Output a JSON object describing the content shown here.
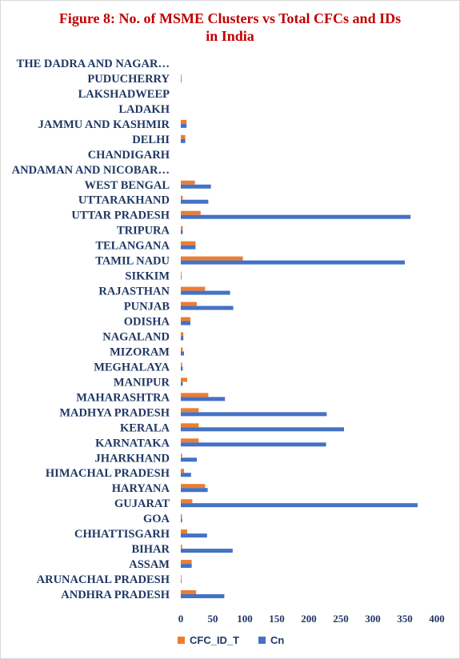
{
  "chart_data": {
    "type": "bar",
    "orientation": "horizontal",
    "title": "Figure 8: No. of MSME Clusters vs Total CFCs and IDs",
    "title_line2": "in India",
    "categories": [
      "ANDHRA PRADESH",
      "ARUNACHAL PRADESH",
      "ASSAM",
      "BIHAR",
      "CHHATTISGARH",
      "GOA",
      "GUJARAT",
      "HARYANA",
      "HIMACHAL PRADESH",
      "JHARKHAND",
      "KARNATAKA",
      "KERALA",
      "MADHYA PRADESH",
      "MAHARASHTRA",
      "MANIPUR",
      "MEGHALAYA",
      "MIZORAM",
      "NAGALAND",
      "ODISHA",
      "PUNJAB",
      "RAJASTHAN",
      "SIKKIM",
      "TAMIL NADU",
      "TELANGANA",
      "TRIPURA",
      "UTTAR PRADESH",
      "UTTARAKHAND",
      "WEST BENGAL",
      "ANDAMAN AND NICOBAR…",
      "CHANDIGARH",
      "DELHI",
      "JAMMU AND KASHMIR",
      "LADAKH",
      "LAKSHADWEEP",
      "PUDUCHERRY",
      "THE DADRA AND NAGAR…"
    ],
    "series": [
      {
        "name": "CFC_ID_T",
        "color": "#ed7d31",
        "values": [
          24,
          1,
          17,
          2,
          10,
          2,
          18,
          38,
          5,
          2,
          28,
          28,
          28,
          43,
          10,
          2,
          3,
          4,
          15,
          25,
          38,
          1,
          97,
          23,
          3,
          31,
          3,
          22,
          0,
          0,
          7,
          9,
          0,
          0,
          1,
          0
        ]
      },
      {
        "name": "Cn",
        "color": "#4472c4",
        "values": [
          68,
          1,
          17,
          81,
          41,
          2,
          370,
          42,
          16,
          25,
          227,
          255,
          228,
          69,
          3,
          3,
          5,
          4,
          15,
          82,
          77,
          1,
          350,
          23,
          3,
          359,
          43,
          47,
          0,
          0,
          7,
          9,
          0,
          0,
          1,
          0
        ]
      }
    ],
    "xlim": [
      0,
      400
    ],
    "xticks": [
      "0",
      "50",
      "100",
      "150",
      "200",
      "250",
      "300",
      "350",
      "400"
    ],
    "grid": false,
    "legend": "bottom"
  }
}
